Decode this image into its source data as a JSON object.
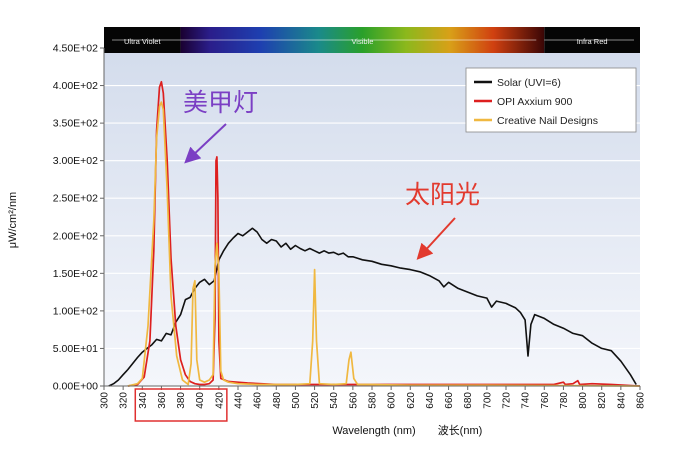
{
  "chart_data": {
    "type": "line",
    "title": "",
    "xlabel": "Wavelength (nm)",
    "xlabel_cn": "波长(nm)",
    "ylabel": "μW/cm²/nm",
    "xlim": [
      300,
      860
    ],
    "ylim": [
      0,
      450
    ],
    "x_ticks": [
      300,
      320,
      340,
      360,
      380,
      400,
      420,
      440,
      460,
      480,
      500,
      520,
      540,
      560,
      580,
      600,
      620,
      640,
      660,
      680,
      700,
      720,
      740,
      760,
      780,
      800,
      820,
      840,
      860
    ],
    "y_ticks": [
      {
        "value": 0,
        "label": "0.00E+00"
      },
      {
        "value": 50,
        "label": "5.00E+01"
      },
      {
        "value": 100,
        "label": "1.00E+02"
      },
      {
        "value": 150,
        "label": "1.50E+02"
      },
      {
        "value": 200,
        "label": "2.00E+02"
      },
      {
        "value": 250,
        "label": "2.50E+02"
      },
      {
        "value": 300,
        "label": "3.00E+02"
      },
      {
        "value": 350,
        "label": "3.50E+02"
      },
      {
        "value": 400,
        "label": "4.00E+02"
      },
      {
        "value": 450,
        "label": "4.50E+02"
      }
    ],
    "grid": true,
    "legend_position": "top-right",
    "spectrum_bands": [
      {
        "label": "Ultra Violet",
        "from": 300,
        "to": 380
      },
      {
        "label": "Visible",
        "from": 380,
        "to": 760
      },
      {
        "label": "Infra Red",
        "from": 760,
        "to": 860
      }
    ],
    "highlight_x_range": [
      340,
      420
    ],
    "series": [
      {
        "name": "Solar (UVI=6)",
        "color": "#111111",
        "points": [
          [
            305,
            0
          ],
          [
            310,
            3
          ],
          [
            315,
            8
          ],
          [
            320,
            15
          ],
          [
            325,
            22
          ],
          [
            330,
            30
          ],
          [
            335,
            38
          ],
          [
            340,
            45
          ],
          [
            345,
            50
          ],
          [
            350,
            55
          ],
          [
            355,
            62
          ],
          [
            360,
            60
          ],
          [
            365,
            70
          ],
          [
            370,
            68
          ],
          [
            375,
            85
          ],
          [
            380,
            95
          ],
          [
            385,
            115
          ],
          [
            390,
            118
          ],
          [
            395,
            130
          ],
          [
            400,
            138
          ],
          [
            405,
            142
          ],
          [
            410,
            135
          ],
          [
            415,
            140
          ],
          [
            420,
            168
          ],
          [
            425,
            180
          ],
          [
            430,
            190
          ],
          [
            435,
            197
          ],
          [
            440,
            203
          ],
          [
            445,
            200
          ],
          [
            450,
            205
          ],
          [
            455,
            210
          ],
          [
            460,
            205
          ],
          [
            465,
            195
          ],
          [
            470,
            190
          ],
          [
            475,
            195
          ],
          [
            480,
            193
          ],
          [
            485,
            185
          ],
          [
            490,
            190
          ],
          [
            495,
            182
          ],
          [
            500,
            187
          ],
          [
            505,
            183
          ],
          [
            510,
            180
          ],
          [
            515,
            183
          ],
          [
            520,
            180
          ],
          [
            525,
            177
          ],
          [
            530,
            180
          ],
          [
            535,
            177
          ],
          [
            540,
            178
          ],
          [
            545,
            175
          ],
          [
            550,
            177
          ],
          [
            555,
            172
          ],
          [
            560,
            172
          ],
          [
            565,
            170
          ],
          [
            570,
            168
          ],
          [
            580,
            166
          ],
          [
            590,
            162
          ],
          [
            600,
            160
          ],
          [
            610,
            157
          ],
          [
            620,
            155
          ],
          [
            630,
            152
          ],
          [
            640,
            147
          ],
          [
            650,
            140
          ],
          [
            655,
            132
          ],
          [
            660,
            138
          ],
          [
            670,
            130
          ],
          [
            680,
            125
          ],
          [
            690,
            120
          ],
          [
            700,
            117
          ],
          [
            705,
            105
          ],
          [
            710,
            113
          ],
          [
            720,
            110
          ],
          [
            730,
            104
          ],
          [
            735,
            98
          ],
          [
            740,
            88
          ],
          [
            743,
            40
          ],
          [
            746,
            82
          ],
          [
            750,
            95
          ],
          [
            760,
            90
          ],
          [
            770,
            82
          ],
          [
            780,
            77
          ],
          [
            790,
            70
          ],
          [
            800,
            67
          ],
          [
            810,
            57
          ],
          [
            820,
            50
          ],
          [
            830,
            47
          ],
          [
            840,
            33
          ],
          [
            850,
            15
          ],
          [
            856,
            2
          ]
        ]
      },
      {
        "name": "OPI Axxium 900",
        "color": "#dd1f1f",
        "points": [
          [
            325,
            0
          ],
          [
            335,
            2
          ],
          [
            342,
            12
          ],
          [
            348,
            60
          ],
          [
            352,
            180
          ],
          [
            355,
            340
          ],
          [
            358,
            398
          ],
          [
            360,
            405
          ],
          [
            362,
            390
          ],
          [
            366,
            300
          ],
          [
            370,
            170
          ],
          [
            375,
            80
          ],
          [
            380,
            35
          ],
          [
            385,
            15
          ],
          [
            390,
            6
          ],
          [
            395,
            3
          ],
          [
            400,
            2
          ],
          [
            405,
            2
          ],
          [
            410,
            3
          ],
          [
            414,
            8
          ],
          [
            416,
            90
          ],
          [
            417,
            300
          ],
          [
            418,
            305
          ],
          [
            419,
            250
          ],
          [
            420,
            60
          ],
          [
            422,
            10
          ],
          [
            430,
            6
          ],
          [
            450,
            4
          ],
          [
            480,
            2
          ],
          [
            520,
            2
          ],
          [
            560,
            2
          ],
          [
            600,
            2
          ],
          [
            700,
            2
          ],
          [
            770,
            2
          ],
          [
            780,
            5
          ],
          [
            782,
            2
          ],
          [
            790,
            3
          ],
          [
            795,
            7
          ],
          [
            797,
            2
          ],
          [
            810,
            3
          ],
          [
            830,
            2
          ],
          [
            860,
            0
          ]
        ]
      },
      {
        "name": "Creative Nail Designs",
        "color": "#f0b840",
        "points": [
          [
            325,
            0
          ],
          [
            335,
            3
          ],
          [
            340,
            10
          ],
          [
            346,
            80
          ],
          [
            352,
            220
          ],
          [
            355,
            330
          ],
          [
            358,
            372
          ],
          [
            360,
            378
          ],
          [
            362,
            368
          ],
          [
            366,
            260
          ],
          [
            370,
            120
          ],
          [
            376,
            40
          ],
          [
            382,
            8
          ],
          [
            388,
            2
          ],
          [
            391,
            30
          ],
          [
            393,
            130
          ],
          [
            395,
            140
          ],
          [
            397,
            35
          ],
          [
            400,
            8
          ],
          [
            405,
            5
          ],
          [
            410,
            8
          ],
          [
            414,
            15
          ],
          [
            416,
            160
          ],
          [
            418,
            190
          ],
          [
            420,
            150
          ],
          [
            422,
            20
          ],
          [
            425,
            8
          ],
          [
            430,
            5
          ],
          [
            440,
            3
          ],
          [
            460,
            2
          ],
          [
            480,
            2
          ],
          [
            500,
            2
          ],
          [
            515,
            3
          ],
          [
            518,
            60
          ],
          [
            520,
            155
          ],
          [
            522,
            60
          ],
          [
            525,
            3
          ],
          [
            540,
            2
          ],
          [
            553,
            3
          ],
          [
            556,
            35
          ],
          [
            558,
            45
          ],
          [
            561,
            10
          ],
          [
            565,
            2
          ],
          [
            580,
            2
          ],
          [
            620,
            1
          ],
          [
            700,
            1
          ],
          [
            860,
            0
          ]
        ]
      }
    ],
    "annotations": [
      {
        "text": "美甲灯",
        "color": "#7b3fc4"
      },
      {
        "text": "太阳光",
        "color": "#e23a2e"
      }
    ]
  }
}
